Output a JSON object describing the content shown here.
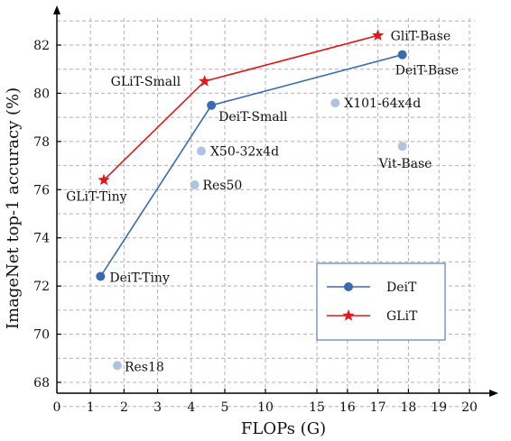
{
  "chart_data": {
    "type": "scatter",
    "xlabel": "FLOPs (G)",
    "ylabel": "ImageNet top-1 accuracy (%)",
    "x_ticks": [
      "0",
      "1",
      "2",
      "3",
      "4",
      "5",
      "10",
      "15",
      "16",
      "17",
      "18",
      "19",
      "20"
    ],
    "y_ticks": [
      68,
      70,
      72,
      74,
      76,
      78,
      80,
      82
    ],
    "ylim": [
      67.5,
      83.5
    ],
    "grid": true,
    "legend_position": "lower-right",
    "series": [
      {
        "name": "DeiT",
        "type": "line",
        "marker": "circle",
        "color": "#3a6ab4",
        "points": [
          {
            "x": 1.3,
            "y": 72.4,
            "label": "DeiT-Tiny"
          },
          {
            "x": 4.6,
            "y": 79.5,
            "label": "DeiT-Small"
          },
          {
            "x": 17.8,
            "y": 81.6,
            "label": "DeiT-Base"
          }
        ]
      },
      {
        "name": "GLiT",
        "type": "line",
        "marker": "star",
        "color": "#e0191c",
        "points": [
          {
            "x": 1.4,
            "y": 76.4,
            "label": "GLiT-Tiny"
          },
          {
            "x": 4.4,
            "y": 80.5,
            "label": "GLiT-Small"
          },
          {
            "x": 17.0,
            "y": 82.4,
            "label": "GliT-Base"
          }
        ]
      },
      {
        "type": "scatter",
        "marker": "circle",
        "color": "#aec3e2",
        "points": [
          {
            "x": 15.6,
            "y": 79.6,
            "label": "X101-64x4d"
          },
          {
            "x": 4.3,
            "y": 77.6,
            "label": "X50-32x4d"
          },
          {
            "x": 17.8,
            "y": 77.8,
            "label": "Vit-Base"
          },
          {
            "x": 4.1,
            "y": 76.2,
            "label": "Res50"
          },
          {
            "x": 1.8,
            "y": 68.7,
            "label": "Res18"
          }
        ]
      }
    ]
  }
}
